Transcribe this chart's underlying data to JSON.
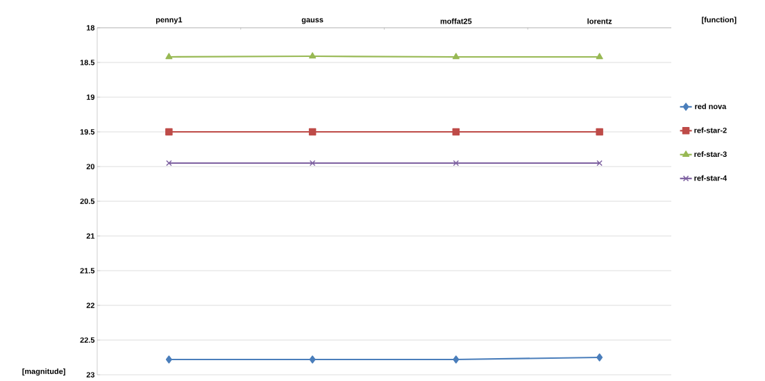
{
  "chart_data": {
    "type": "line",
    "xlabel": "[function]",
    "ylabel": "[magnitude]",
    "categories": [
      "penny1",
      "gauss",
      "moffat25",
      "lorentz"
    ],
    "series": [
      {
        "name": "red nova",
        "color": "#4a7ebb",
        "values": [
          22.78,
          22.78,
          22.78,
          22.75
        ],
        "marker": "diamond"
      },
      {
        "name": "ref-star-2",
        "color": "#be4b48",
        "values": [
          19.5,
          19.5,
          19.5,
          19.5
        ],
        "marker": "square"
      },
      {
        "name": "ref-star-3",
        "color": "#98b954",
        "values": [
          18.42,
          18.41,
          18.42,
          18.42
        ],
        "marker": "triangle"
      },
      {
        "name": "ref-star-4",
        "color": "#7d60a0",
        "values": [
          19.95,
          19.95,
          19.95,
          19.95
        ],
        "marker": "cross"
      }
    ],
    "ylim": [
      23,
      18
    ],
    "yticks": [
      18,
      18.5,
      19,
      19.5,
      20,
      20.5,
      21,
      21.5,
      22,
      22.5,
      23
    ],
    "grid": "y",
    "legend": "right",
    "line_style": "solid"
  }
}
